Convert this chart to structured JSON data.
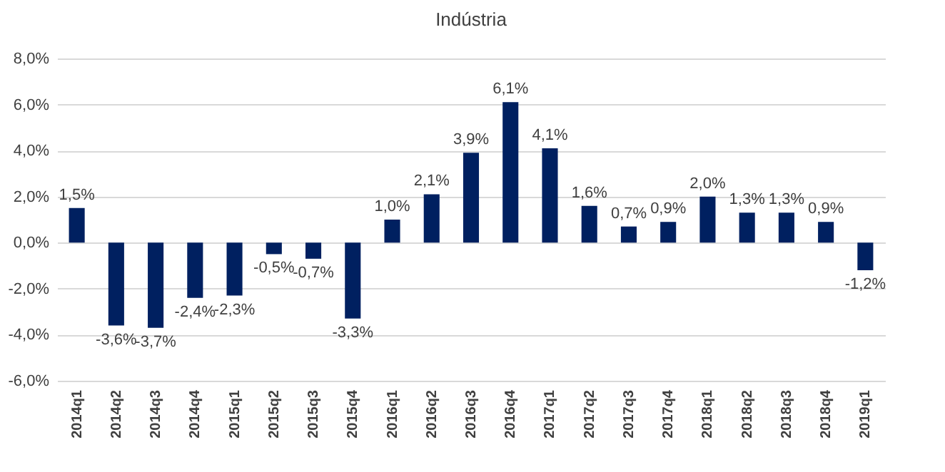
{
  "chart_data": {
    "type": "bar",
    "title": "Indústria",
    "categories": [
      "2014q1",
      "2014q2",
      "2014q3",
      "2014q4",
      "2015q1",
      "2015q2",
      "2015q3",
      "2015q4",
      "2016q1",
      "2016q2",
      "2016q3",
      "2016q4",
      "2017q1",
      "2017q2",
      "2017q3",
      "2017q4",
      "2018q1",
      "2018q2",
      "2018q3",
      "2018q4",
      "2019q1"
    ],
    "values": [
      1.5,
      -3.6,
      -3.7,
      -2.4,
      -2.3,
      -0.5,
      -0.7,
      -3.3,
      1.0,
      2.1,
      3.9,
      6.1,
      4.1,
      1.6,
      0.7,
      0.9,
      2.0,
      1.3,
      1.3,
      0.9,
      -1.2
    ],
    "value_labels": [
      "1,5%",
      "-3,6%",
      "-3,7%",
      "-2,4%",
      "-2,3%",
      "-0,5%",
      "-0,7%",
      "-3,3%",
      "1,0%",
      "2,1%",
      "3,9%",
      "6,1%",
      "4,1%",
      "1,6%",
      "0,7%",
      "0,9%",
      "2,0%",
      "1,3%",
      "1,3%",
      "0,9%",
      "-1,2%"
    ],
    "color": "#002060",
    "ylim": [
      -6,
      8
    ],
    "yticks": [
      {
        "value": -6,
        "label": "-6,0%"
      },
      {
        "value": -4,
        "label": "-4,0%"
      },
      {
        "value": -2,
        "label": "-2,0%"
      },
      {
        "value": 0,
        "label": "0,0%"
      },
      {
        "value": 2,
        "label": "2,0%"
      },
      {
        "value": 4,
        "label": "4,0%"
      },
      {
        "value": 6,
        "label": "6,0%"
      },
      {
        "value": 8,
        "label": "8,0%"
      }
    ],
    "grid": "y"
  }
}
